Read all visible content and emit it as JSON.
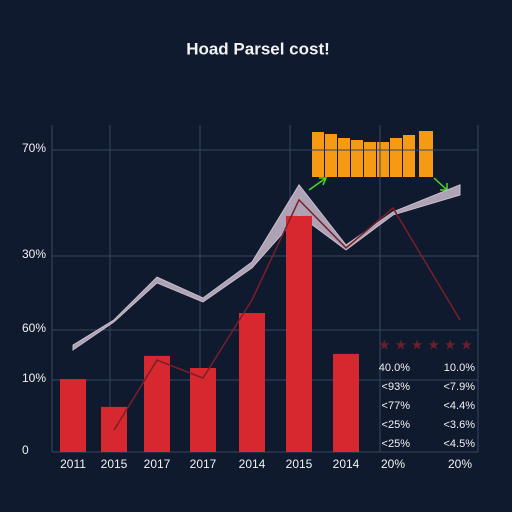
{
  "chart_data": {
    "type": "bar",
    "title": "Hoad Parsel cost!",
    "y_labels": [
      "70%",
      "30%",
      "60%",
      "10%",
      "0"
    ],
    "categories": [
      "2011",
      "2015",
      "2017",
      "2017",
      "2014",
      "2015",
      "2014",
      "20%",
      "20%"
    ],
    "values": [
      22.3,
      13.8,
      29.4,
      25.7,
      42.5,
      72.2,
      30.0,
      null,
      null
    ],
    "color": "#d7282f",
    "ylim": [
      0,
      100
    ],
    "band": {
      "color": "#c9bccd",
      "upper": [
        32.7,
        40.4,
        53.5,
        47.1,
        58.1,
        81.7,
        63.3,
        73.4,
        81.7
      ],
      "lower": [
        31.2,
        39.8,
        51.7,
        45.9,
        56.3,
        72.5,
        61.8,
        72.5,
        78.6
      ]
    },
    "line": {
      "color": "#7a1f2a",
      "values": [
        null,
        6.7,
        28.1,
        22.6,
        46.5,
        77.1,
        62.4,
        74.6,
        40.4
      ]
    },
    "table": [
      [
        "40.0%",
        "10.0%"
      ],
      [
        "<93%",
        "<7.9%"
      ],
      [
        "<77%",
        "<4.4%"
      ],
      [
        "<25%",
        "<3.6%"
      ],
      [
        "<25%",
        "<4.5%"
      ]
    ]
  }
}
